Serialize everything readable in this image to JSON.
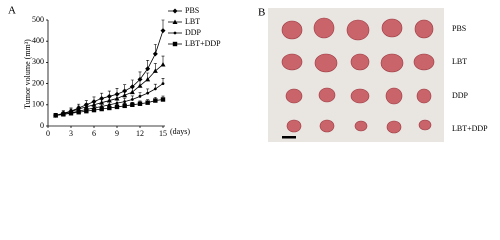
{
  "chart_data": {
    "type": "line",
    "panel_label": "A",
    "ylabel": "Tumor volume (mm³)",
    "xlabel": "(days)",
    "x": [
      1,
      2,
      3,
      4,
      5,
      6,
      7,
      8,
      9,
      10,
      11,
      12,
      13,
      14,
      15
    ],
    "series": [
      {
        "name": "PBS",
        "color": "#000000",
        "marker": "diamond",
        "values": [
          50,
          60,
          70,
          85,
          100,
          115,
          130,
          140,
          150,
          165,
          185,
          220,
          270,
          340,
          450
        ],
        "errors": [
          10,
          12,
          15,
          18,
          20,
          22,
          25,
          25,
          28,
          30,
          32,
          35,
          40,
          45,
          50
        ]
      },
      {
        "name": "LBT",
        "color": "#000000",
        "marker": "triangle",
        "values": [
          50,
          58,
          68,
          80,
          90,
          100,
          110,
          120,
          130,
          145,
          160,
          190,
          220,
          260,
          290
        ],
        "errors": [
          8,
          10,
          12,
          14,
          16,
          18,
          20,
          20,
          22,
          24,
          26,
          28,
          30,
          35,
          40
        ]
      },
      {
        "name": "DDP",
        "color": "#000000",
        "marker": "dot",
        "values": [
          50,
          55,
          62,
          70,
          78,
          85,
          92,
          100,
          108,
          115,
          125,
          140,
          155,
          175,
          200
        ],
        "errors": [
          6,
          8,
          9,
          10,
          11,
          12,
          13,
          14,
          15,
          16,
          17,
          18,
          20,
          22,
          25
        ]
      },
      {
        "name": "LBT+DDP",
        "color": "#000000",
        "marker": "square",
        "values": [
          50,
          55,
          60,
          65,
          70,
          75,
          80,
          85,
          90,
          95,
          100,
          105,
          110,
          120,
          125
        ],
        "errors": [
          5,
          6,
          7,
          8,
          8,
          9,
          10,
          10,
          11,
          12,
          12,
          13,
          14,
          15,
          16
        ]
      }
    ],
    "xlim": [
      0,
      15
    ],
    "xticks": [
      0,
      3,
      6,
      9,
      12,
      15
    ],
    "ylim": [
      0,
      500
    ],
    "yticks": [
      0,
      100,
      200,
      300,
      400,
      500
    ],
    "legend": "top-right"
  },
  "photo_panel": {
    "label": "B",
    "rows": [
      "PBS",
      "LBT",
      "DDP",
      "LBT+DDP"
    ]
  }
}
